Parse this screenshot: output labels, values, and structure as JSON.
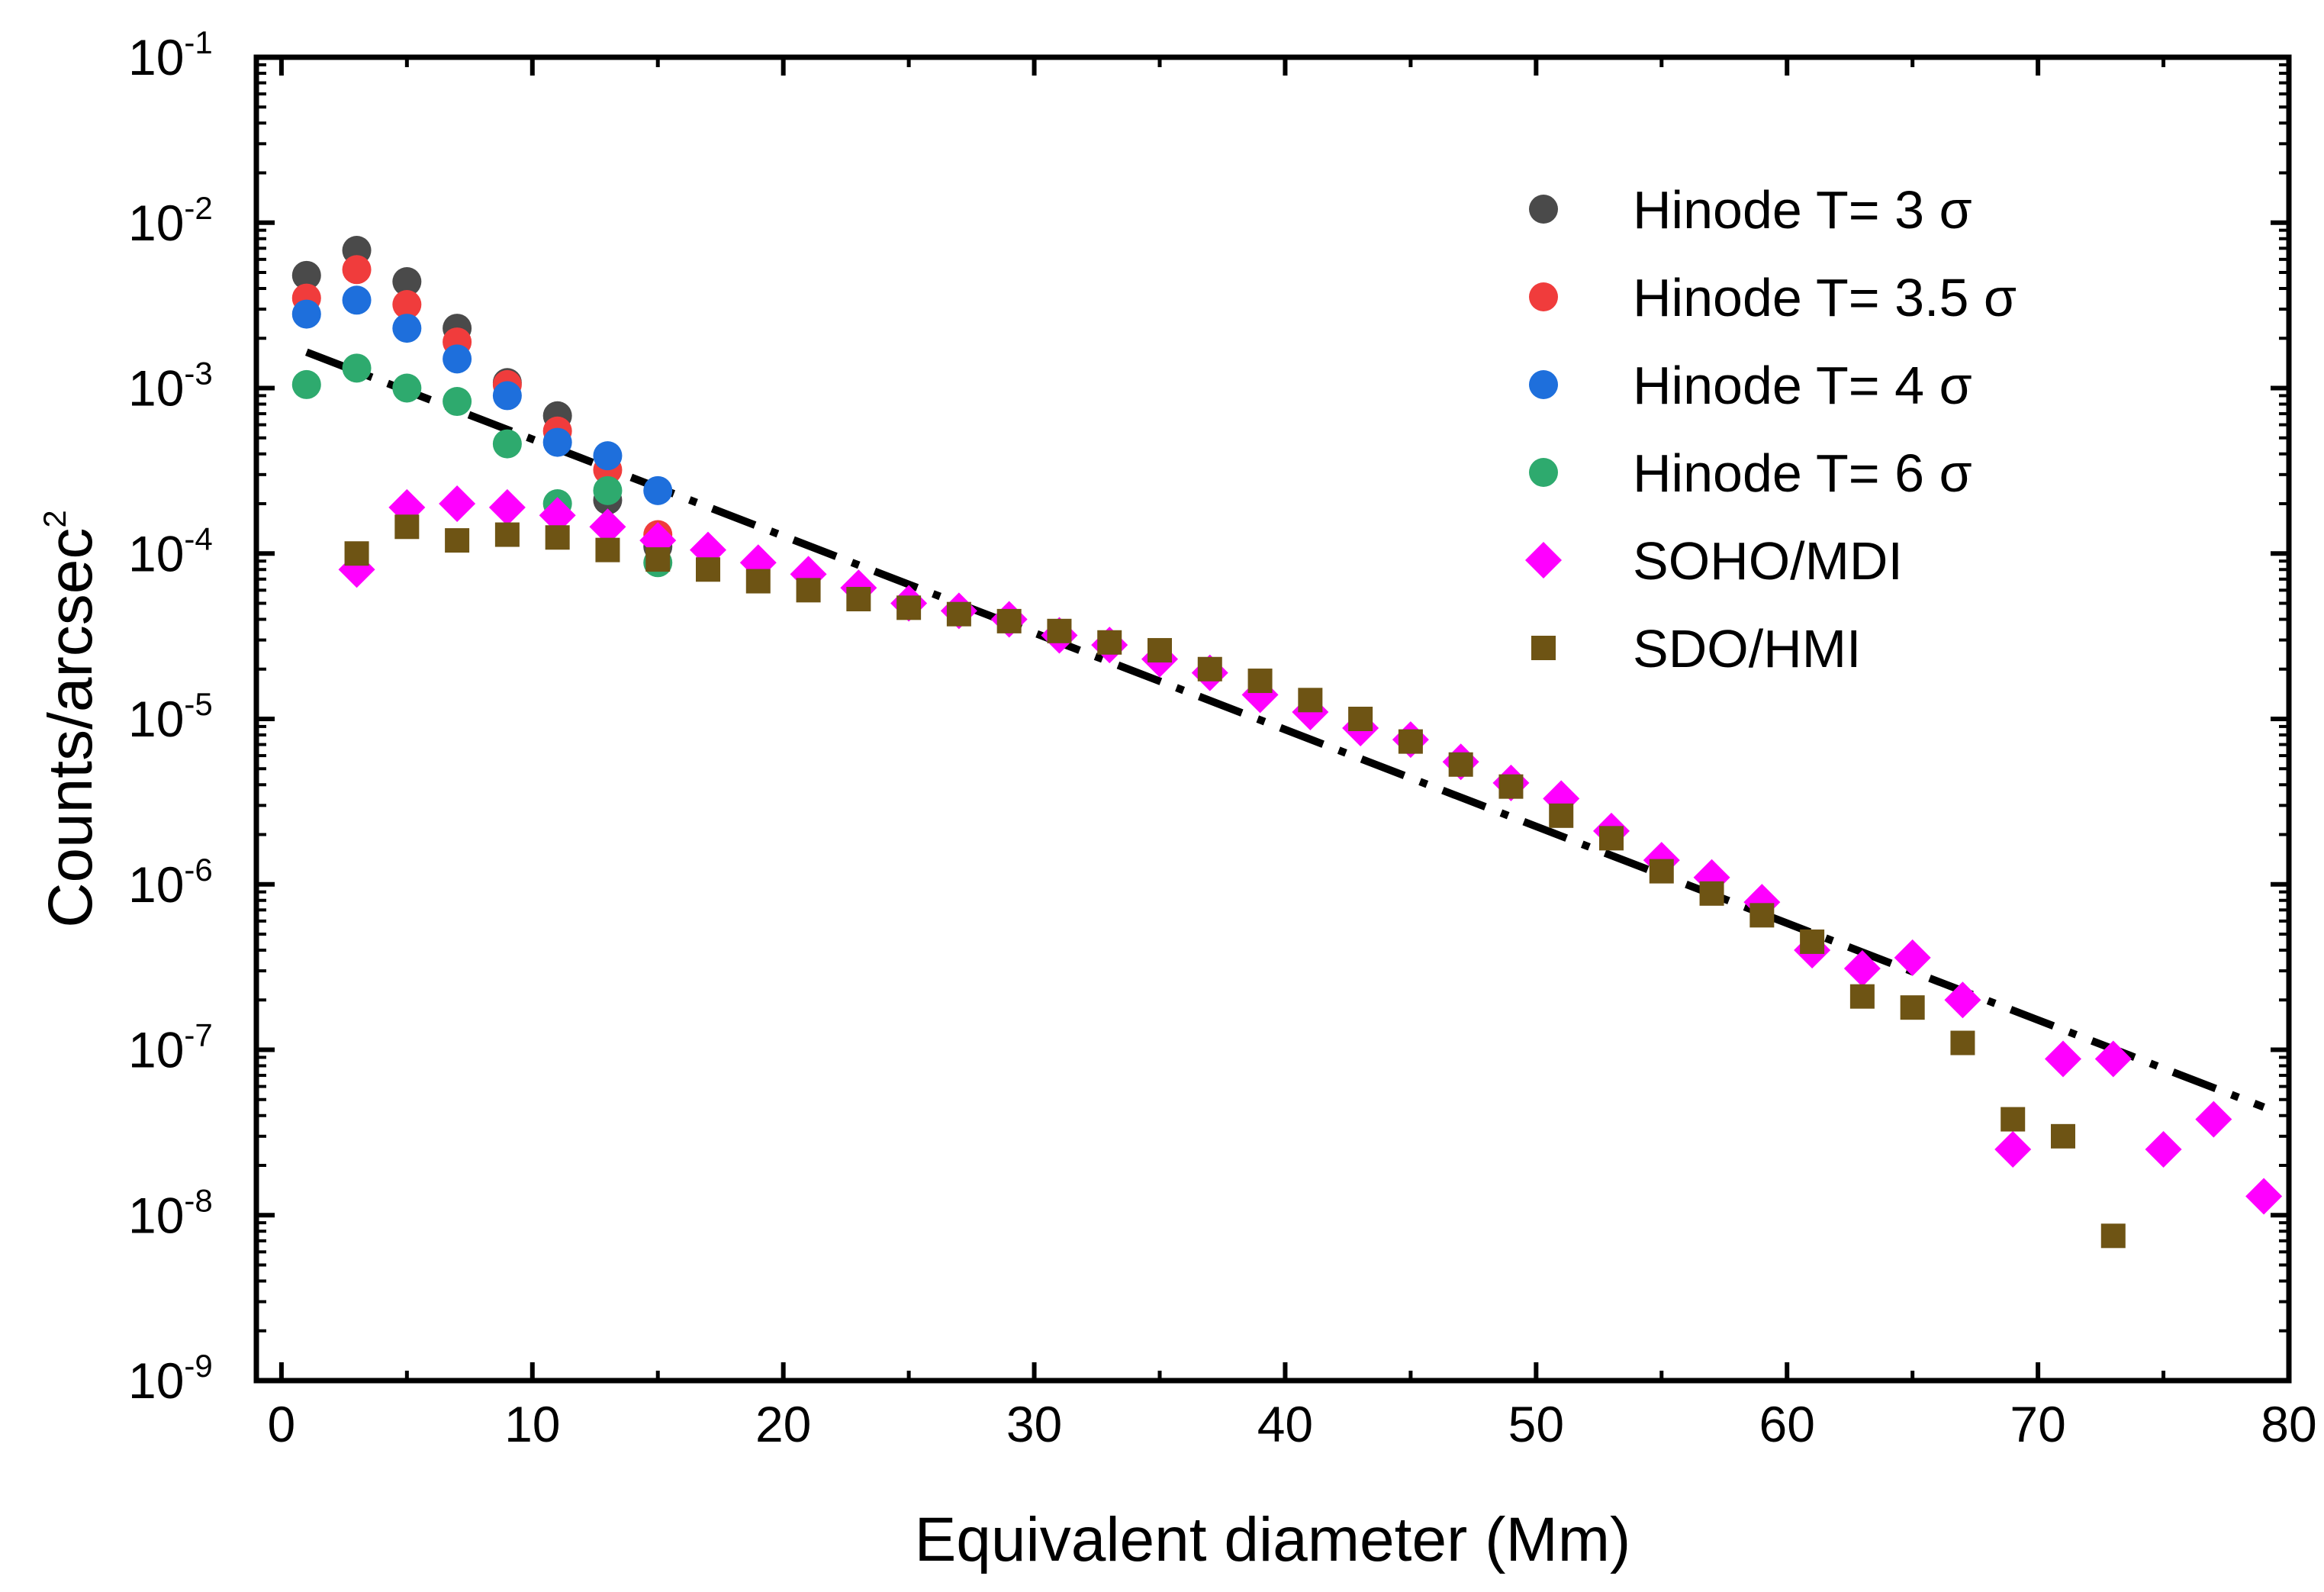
{
  "chart_data": {
    "type": "scatter",
    "title": "",
    "xlabel": "Equivalent diameter (Mm)",
    "ylabel": {
      "base": "Counts/arcsec",
      "sup": "2"
    },
    "xlim": [
      -1,
      80
    ],
    "ylim_log10": [
      -9,
      -1
    ],
    "x_ticks": [
      "0",
      "10",
      "20",
      "30",
      "40",
      "50",
      "60",
      "70",
      "80"
    ],
    "y_ticks": [
      {
        "base": "10",
        "exp": "-9"
      },
      {
        "base": "10",
        "exp": "-8"
      },
      {
        "base": "10",
        "exp": "-7"
      },
      {
        "base": "10",
        "exp": "-6"
      },
      {
        "base": "10",
        "exp": "-5"
      },
      {
        "base": "10",
        "exp": "-4"
      },
      {
        "base": "10",
        "exp": "-3"
      },
      {
        "base": "10",
        "exp": "-2"
      },
      {
        "base": "10",
        "exp": "-1"
      }
    ],
    "legend_position": "top-right",
    "series": [
      {
        "name": "Hinode T= 3 σ",
        "marker": "circle",
        "color": "#4a4a4a",
        "x": [
          1,
          3,
          5,
          7,
          9,
          11,
          13,
          15
        ],
        "y": [
          0.0048,
          0.0068,
          0.0044,
          0.0023,
          0.00108,
          0.00068,
          0.00021,
          0.00011
        ]
      },
      {
        "name": "Hinode T= 3.5 σ",
        "marker": "circle",
        "color": "#f03c3c",
        "x": [
          1,
          3,
          5,
          7,
          9,
          11,
          13,
          15
        ],
        "y": [
          0.0035,
          0.0052,
          0.0032,
          0.0019,
          0.00105,
          0.00055,
          0.00032,
          0.00013
        ]
      },
      {
        "name": "Hinode T= 4 σ",
        "marker": "circle",
        "color": "#1e6fdc",
        "x": [
          1,
          3,
          5,
          7,
          9,
          11,
          13,
          15
        ],
        "y": [
          0.0028,
          0.0034,
          0.0023,
          0.0015,
          0.0009,
          0.00047,
          0.00039,
          0.00024
        ]
      },
      {
        "name": "Hinode T= 6 σ",
        "marker": "circle",
        "color": "#2eaa6e",
        "x": [
          1,
          3,
          5,
          7,
          9,
          11,
          13,
          15
        ],
        "y": [
          0.00105,
          0.00132,
          0.001,
          0.00083,
          0.00046,
          0.0002,
          0.00024,
          8.8e-05
        ]
      },
      {
        "name": "SOHO/MDI",
        "marker": "diamond",
        "color": "#ff00ff",
        "x": [
          3,
          5,
          7,
          9,
          11,
          13,
          15,
          17,
          19,
          21,
          23,
          25,
          27,
          29,
          31,
          33,
          35,
          37,
          39,
          41,
          43,
          45,
          47,
          49,
          51,
          53,
          55,
          57,
          59,
          61,
          63,
          65,
          67,
          69,
          71,
          73,
          75,
          77,
          79
        ],
        "y": [
          8e-05,
          0.00019,
          0.0002,
          0.00019,
          0.00017,
          0.000145,
          0.00012,
          0.000105,
          8.8e-05,
          7.5e-05,
          6.2e-05,
          5e-05,
          4.5e-05,
          4e-05,
          3.2e-05,
          2.8e-05,
          2.3e-05,
          1.9e-05,
          1.4e-05,
          1.1e-05,
          8.8e-06,
          7.5e-06,
          5.5e-06,
          4.1e-06,
          3.3e-06,
          2.1e-06,
          1.4e-06,
          1.1e-06,
          7.8e-07,
          4e-07,
          3.1e-07,
          3.6e-07,
          2e-07,
          2.5e-08,
          8.8e-08,
          8.8e-08,
          2.5e-08,
          3.8e-08,
          1.3e-08
        ]
      },
      {
        "name": "SDO/HMI",
        "marker": "square",
        "color": "#6e5414",
        "x": [
          3,
          5,
          7,
          9,
          11,
          13,
          15,
          17,
          19,
          21,
          23,
          25,
          27,
          29,
          31,
          33,
          35,
          37,
          39,
          41,
          43,
          45,
          47,
          49,
          51,
          53,
          55,
          57,
          59,
          61,
          63,
          65,
          67,
          69,
          71,
          73
        ],
        "y": [
          0.0001,
          0.000145,
          0.00012,
          0.00013,
          0.000125,
          0.000105,
          9.2e-05,
          8e-05,
          6.8e-05,
          6e-05,
          5.3e-05,
          4.7e-05,
          4.3e-05,
          3.9e-05,
          3.4e-05,
          2.9e-05,
          2.6e-05,
          2e-05,
          1.7e-05,
          1.3e-05,
          1e-05,
          7.3e-06,
          5.3e-06,
          3.9e-06,
          2.6e-06,
          1.9e-06,
          1.2e-06,
          8.8e-07,
          6.5e-07,
          4.5e-07,
          2.1e-07,
          1.8e-07,
          1.1e-07,
          3.8e-08,
          3e-08,
          7.5e-09
        ]
      }
    ],
    "fit_line": {
      "style": "dash-dot",
      "color": "#000000",
      "x": [
        1,
        79
      ],
      "y": [
        0.00165,
        4.5e-08
      ]
    }
  }
}
